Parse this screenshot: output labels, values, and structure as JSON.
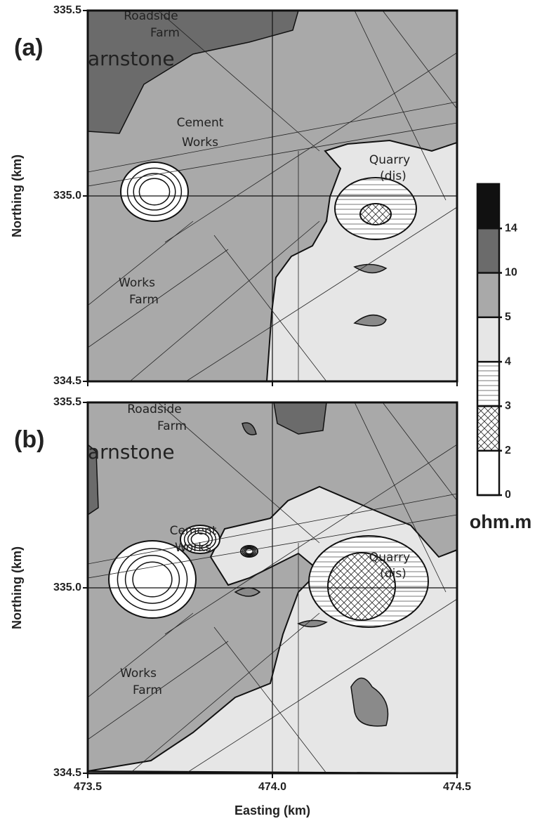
{
  "axes": {
    "x_label": "Easting (km)",
    "y_label": "Northing (km)",
    "xlim": [
      473.5,
      474.5
    ],
    "ylim": [
      334.5,
      335.5
    ],
    "xticks": [
      473.5,
      {
        "value": 474,
        "label": "474.0"
      },
      474.5
    ],
    "yticks": [
      334.5,
      {
        "value": 335,
        "label": "335.0"
      },
      335.5
    ]
  },
  "panels": [
    {
      "label": "(a)",
      "places": [
        [
          "Roadside",
          "Farm"
        ],
        [
          "arnstone"
        ],
        [
          "Cement",
          "Works"
        ],
        [
          "Quarry",
          "(dis)"
        ],
        [
          "Works",
          "Farm"
        ]
      ]
    },
    {
      "label": "(b)",
      "places": [
        [
          "Roadside",
          "Farm"
        ],
        [
          "arnstone"
        ],
        [
          "Cement",
          "Works"
        ],
        [
          "Quarry",
          "(dis)"
        ],
        [
          "Works",
          "Farm"
        ]
      ]
    }
  ],
  "colorbar": {
    "levels": [
      0,
      2,
      3,
      4,
      5,
      10,
      14
    ],
    "unit": "ohm.m"
  }
}
